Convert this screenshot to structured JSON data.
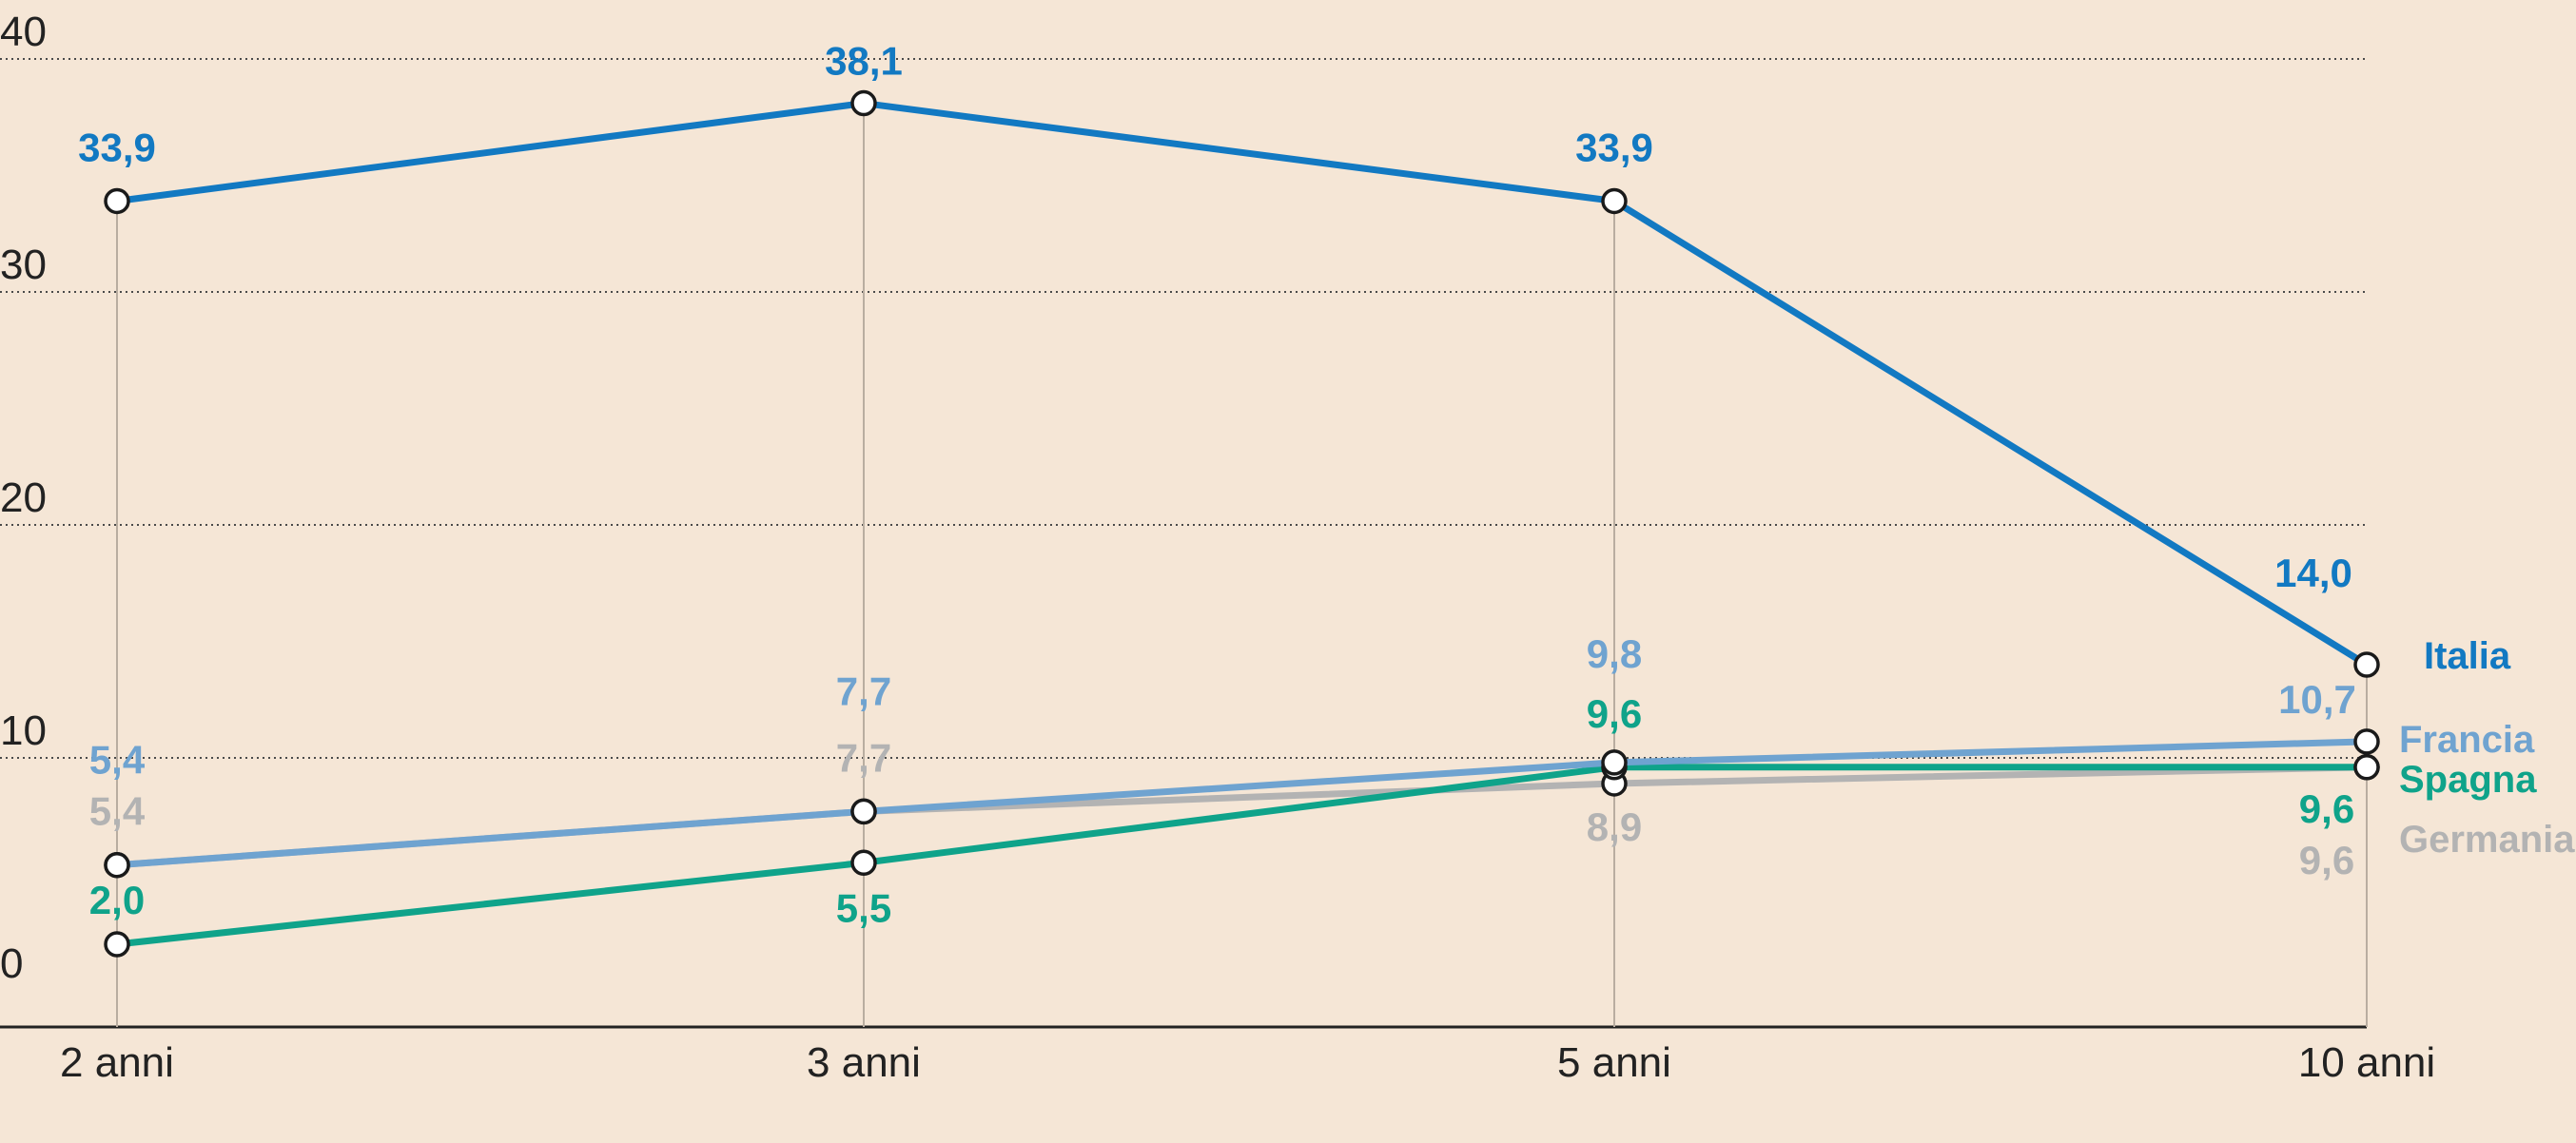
{
  "chart_data": {
    "type": "line",
    "categories": [
      "2 anni",
      "3 anni",
      "5 anni",
      "10 anni"
    ],
    "ylim": [
      0,
      40
    ],
    "yticks": [
      "0",
      "10",
      "20",
      "30",
      "40"
    ],
    "grid": true,
    "series": [
      {
        "name": "Germania",
        "color": "#b3b3b3",
        "values": [
          5.4,
          7.7,
          8.9,
          9.6
        ],
        "labels": [
          "5,4",
          "7,7",
          "8,9",
          "9,6"
        ]
      },
      {
        "name": "Spagna",
        "color": "#0fa38a",
        "values": [
          2.0,
          5.5,
          9.6,
          9.6
        ],
        "labels": [
          "2,0",
          "5,5",
          "9,6",
          "9,6"
        ]
      },
      {
        "name": "Francia",
        "color": "#6fa3d0",
        "values": [
          5.4,
          7.7,
          9.8,
          10.7
        ],
        "labels": [
          "5,4",
          "7,7",
          "9,8",
          "10,7"
        ]
      },
      {
        "name": "Italia",
        "color": "#1279c2",
        "values": [
          33.9,
          38.1,
          33.9,
          14.0
        ],
        "labels": [
          "33,9",
          "38,1",
          "33,9",
          "14,0"
        ]
      }
    ]
  }
}
